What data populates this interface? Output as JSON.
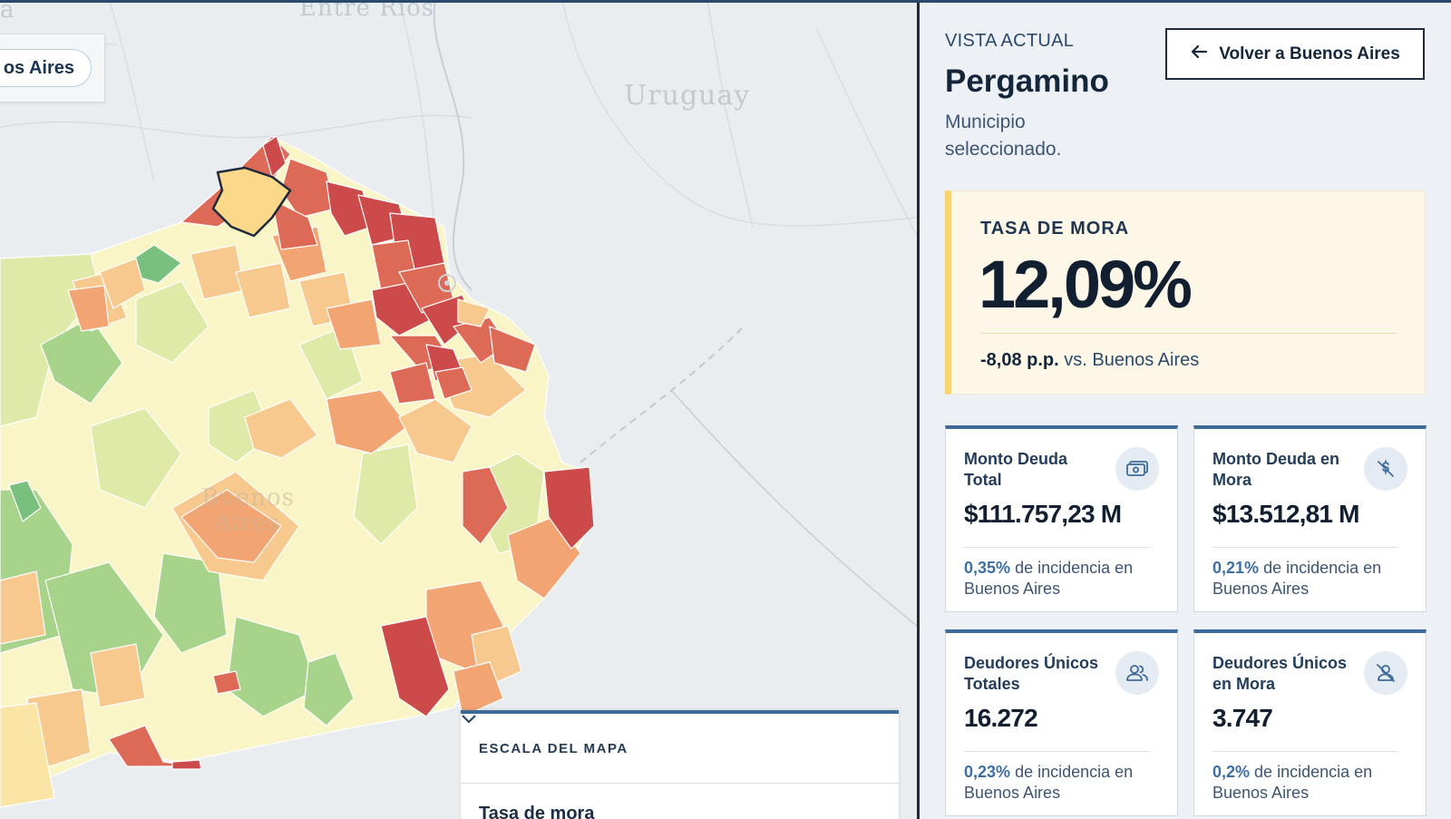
{
  "map": {
    "labels": {
      "entre_rios": "Entre Ríos",
      "uruguay": "Uruguay",
      "province": "Buenos\nAires",
      "edge": "a"
    },
    "back_chip": "os Aires",
    "scale": {
      "title": "ESCALA DEL MAPA",
      "subtitle": "Tasa de mora"
    },
    "colors": {
      "dark_red": "#cc4a4a",
      "red": "#dd6a56",
      "orange": "#f2a472",
      "light_orange": "#f8c98e",
      "yellow": "#fbe5a6",
      "cream": "#f9f5c7",
      "light_green": "#dfeaa8",
      "green": "#a8d38a",
      "mid_green": "#79c07f",
      "selected": "#fcd98a"
    }
  },
  "panel": {
    "kicker": "VISTA ACTUAL",
    "title": "Pergamino",
    "subtitle": "Municipio seleccionado.",
    "back_button": "Volver a Buenos Aires",
    "mora": {
      "kicker": "TASA DE MORA",
      "value": "12,09%",
      "comparison_value": "-8,08 p.p.",
      "comparison_text": "vs. Buenos Aires"
    },
    "metrics": [
      {
        "title": "Monto Deuda Total",
        "icon": "cash-icon",
        "value": "$111.757,23 M",
        "pct": "0,35%",
        "foot": "de incidencia en Buenos Aires"
      },
      {
        "title": "Monto Deuda en Mora",
        "icon": "no-money-icon",
        "value": "$13.512,81 M",
        "pct": "0,21%",
        "foot": "de incidencia en Buenos Aires"
      },
      {
        "title": "Deudores Únicos Totales",
        "icon": "users-icon",
        "value": "16.272",
        "pct": "0,23%",
        "foot": "de incidencia en Buenos Aires"
      },
      {
        "title": "Deudores Únicos en Mora",
        "icon": "user-off-icon",
        "value": "3.747",
        "pct": "0,2%",
        "foot": "de incidencia en Buenos Aires"
      }
    ]
  }
}
